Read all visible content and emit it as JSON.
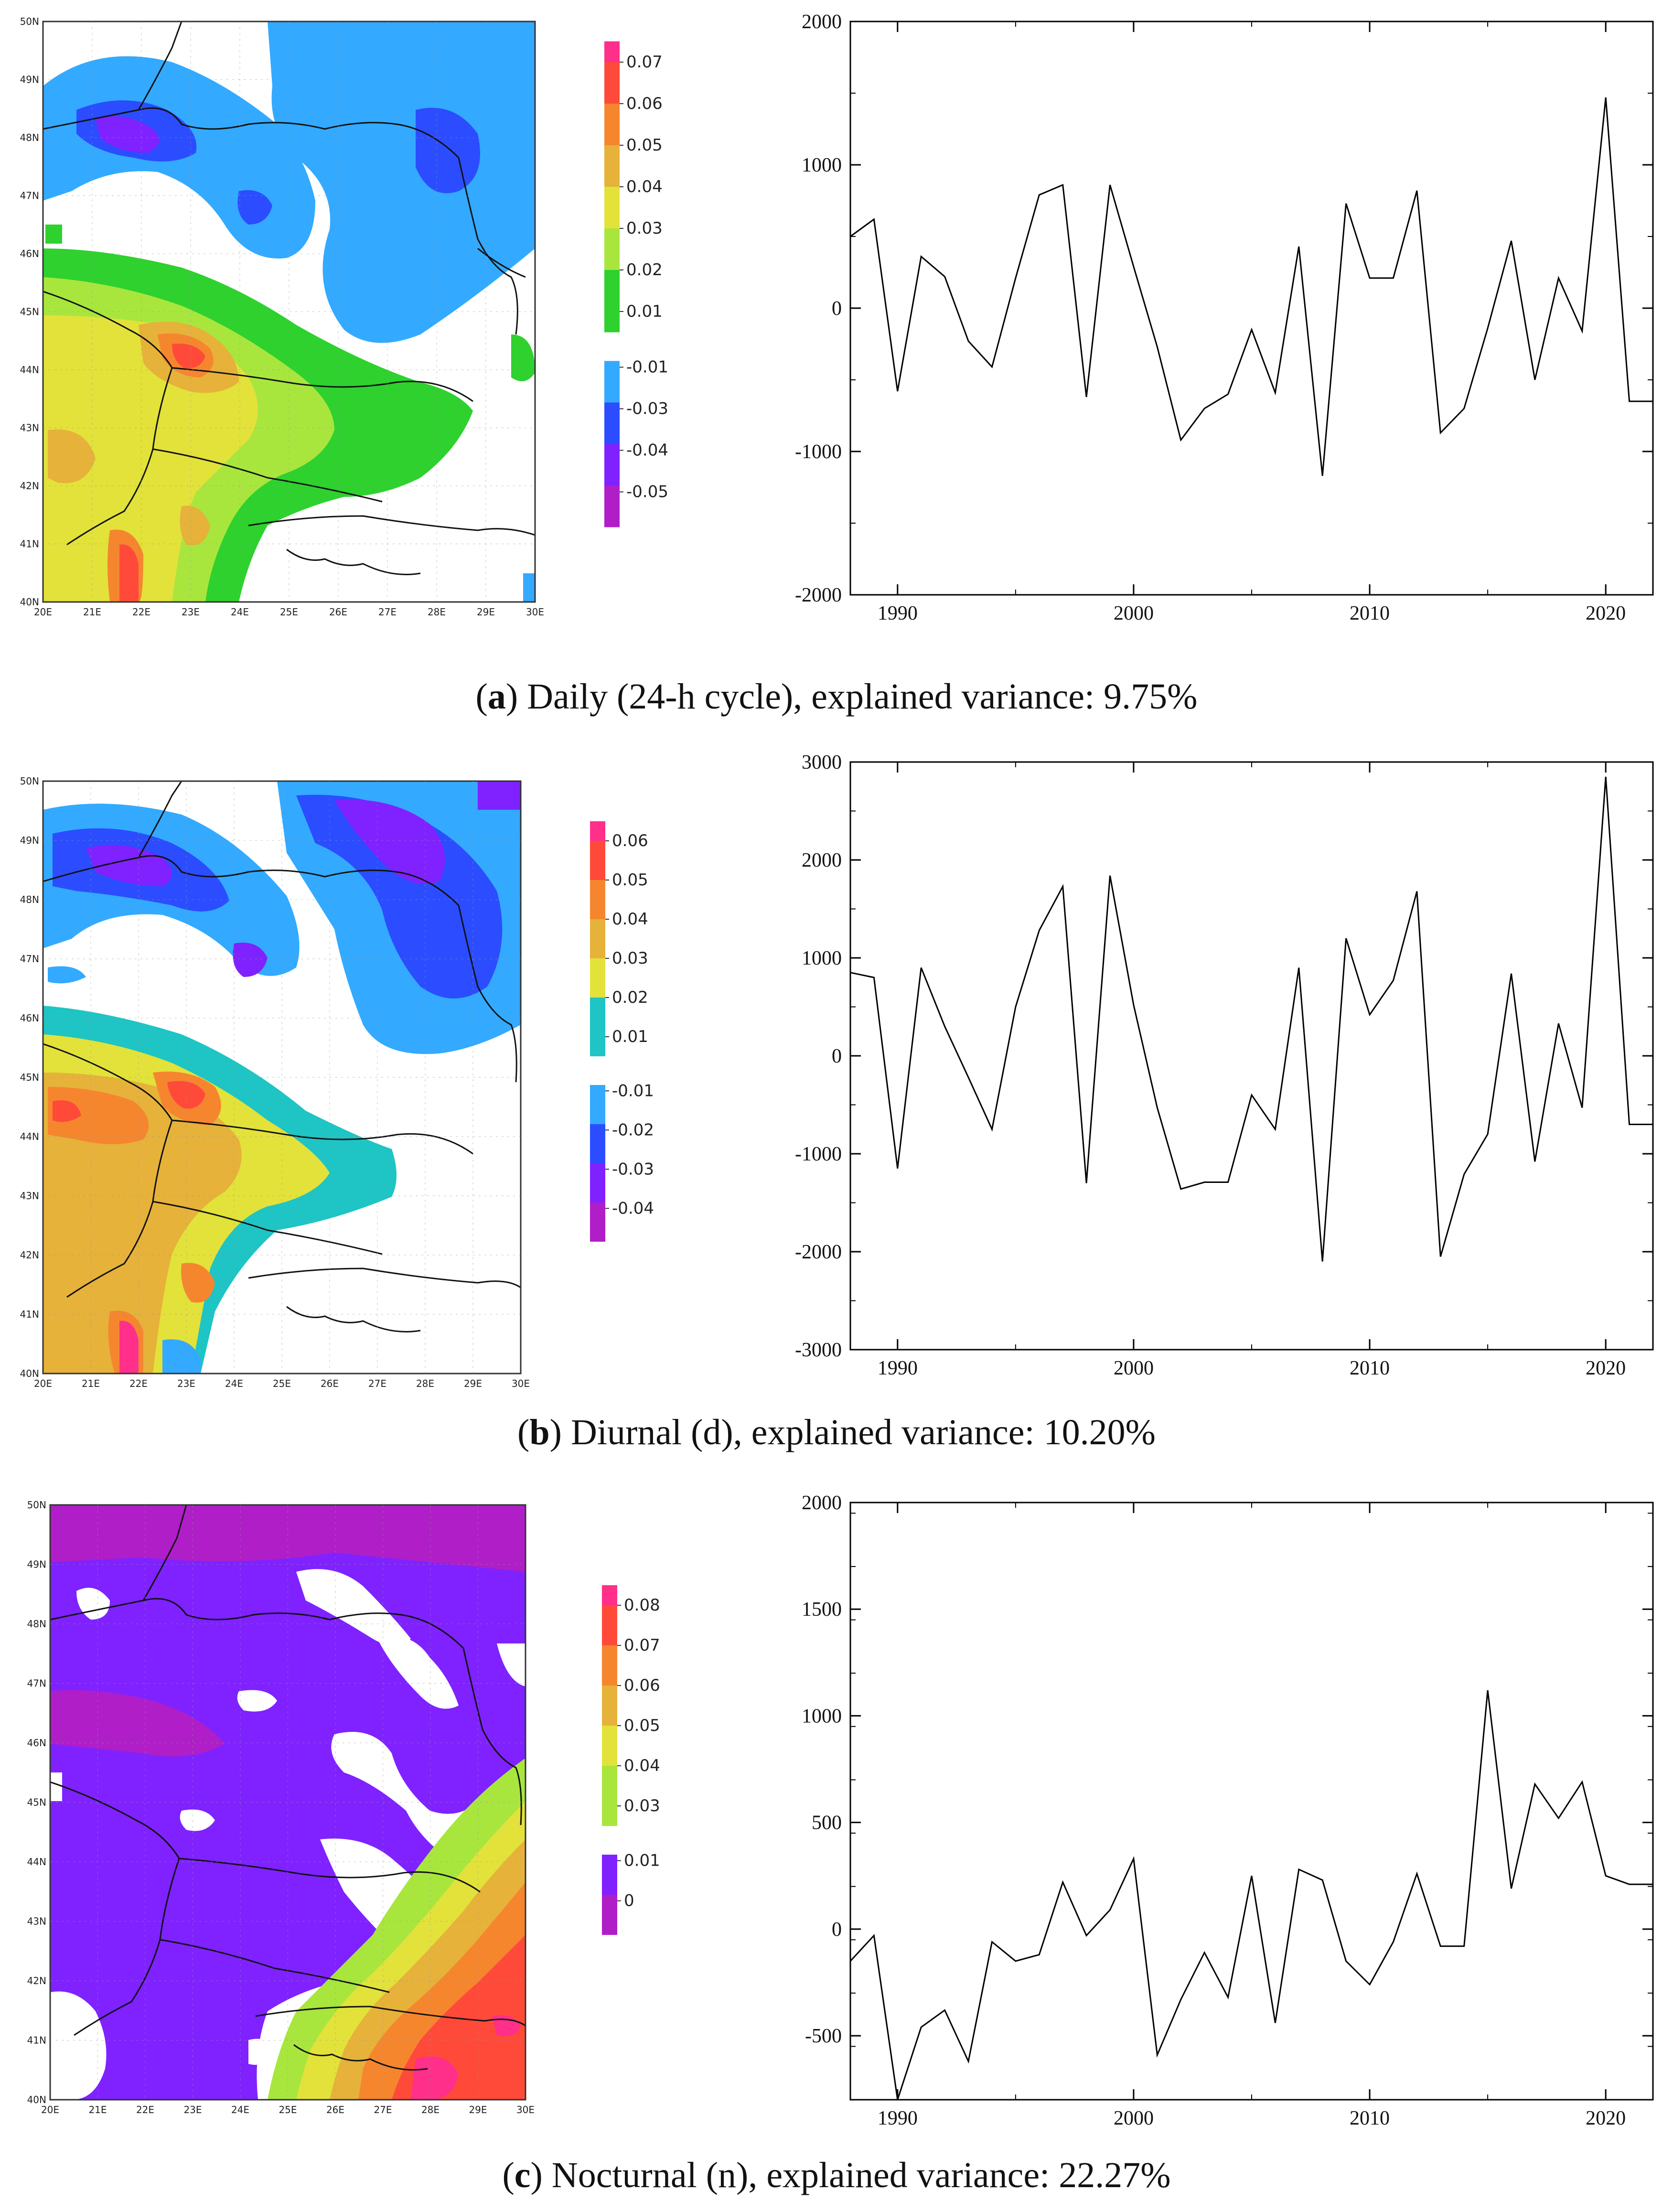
{
  "chart_data": [
    {
      "type": "heatmap",
      "panel": "a",
      "title": "",
      "xlabel": "",
      "ylabel": "",
      "x_ticks": [
        "20E",
        "21E",
        "22E",
        "23E",
        "24E",
        "25E",
        "26E",
        "27E",
        "28E",
        "29E",
        "30E"
      ],
      "y_ticks": [
        "40N",
        "41N",
        "42N",
        "43N",
        "44N",
        "45N",
        "46N",
        "47N",
        "48N",
        "49N",
        "50N"
      ],
      "xlim": [
        20,
        30
      ],
      "ylim": [
        40,
        50
      ],
      "legend_positive": [
        "0.07",
        "0.06",
        "0.05",
        "0.04",
        "0.03",
        "0.02",
        "0.01"
      ],
      "legend_negative": [
        "-0.01",
        "-0.03",
        "-0.04",
        "-0.05"
      ],
      "colors_positive": [
        "#ff2f8a",
        "#ff4a3a",
        "#f5862e",
        "#e6b23a",
        "#e2e23a",
        "#a8e63e",
        "#2ed12e"
      ],
      "colors_negative": [
        "#33aaff",
        "#2b4dff",
        "#7f22ff",
        "#b01ec8"
      ],
      "caption_letter": "a",
      "caption_text": ") Daily (24-h cycle), explained variance: 9.75%"
    },
    {
      "type": "line",
      "panel": "a",
      "title": "",
      "xlabel": "",
      "ylabel": "",
      "xlim": [
        1988,
        2022
      ],
      "ylim": [
        -2000,
        2000
      ],
      "x_ticks": [
        "1990",
        "2000",
        "2010",
        "2020"
      ],
      "y_ticks": [
        "2000",
        "1000",
        "0",
        "-1000",
        "-2000"
      ],
      "x": [
        1988,
        1989,
        1990,
        1991,
        1992,
        1993,
        1994,
        1995,
        1996,
        1997,
        1998,
        1999,
        2000,
        2001,
        2002,
        2003,
        2004,
        2005,
        2006,
        2007,
        2008,
        2009,
        2010,
        2011,
        2012,
        2013,
        2014,
        2015,
        2016,
        2017,
        2018,
        2019,
        2020,
        2021,
        2022
      ],
      "values": [
        500,
        620,
        -580,
        360,
        220,
        -230,
        -410,
        210,
        790,
        860,
        -620,
        860,
        290,
        -270,
        -920,
        -700,
        -600,
        -150,
        -590,
        430,
        -1170,
        730,
        210,
        210,
        820,
        -870,
        -700,
        -140,
        470,
        -500,
        210,
        -160,
        1470,
        -650,
        -650
      ]
    },
    {
      "type": "heatmap",
      "panel": "b",
      "title": "",
      "xlabel": "",
      "ylabel": "",
      "x_ticks": [
        "20E",
        "21E",
        "22E",
        "23E",
        "24E",
        "25E",
        "26E",
        "27E",
        "28E",
        "29E",
        "30E"
      ],
      "y_ticks": [
        "40N",
        "41N",
        "42N",
        "43N",
        "44N",
        "45N",
        "46N",
        "47N",
        "48N",
        "49N",
        "50N"
      ],
      "xlim": [
        20,
        30
      ],
      "ylim": [
        40,
        50
      ],
      "legend_positive": [
        "0.06",
        "0.05",
        "0.04",
        "0.03",
        "0.02",
        "0.01"
      ],
      "legend_negative": [
        "-0.01",
        "-0.02",
        "-0.03",
        "-0.04"
      ],
      "colors_positive": [
        "#ff2f8a",
        "#ff4a3a",
        "#f5862e",
        "#e6b23a",
        "#e2e23a",
        "#1fc4c4"
      ],
      "colors_negative": [
        "#33aaff",
        "#2b4dff",
        "#7f22ff",
        "#b01ec8"
      ],
      "caption_letter": "b",
      "caption_text": ") Diurnal (d), explained variance: 10.20%"
    },
    {
      "type": "line",
      "panel": "b",
      "title": "",
      "xlabel": "",
      "ylabel": "",
      "xlim": [
        1988,
        2022
      ],
      "ylim": [
        -3000,
        3000
      ],
      "x_ticks": [
        "1990",
        "2000",
        "2010",
        "2020"
      ],
      "y_ticks": [
        "3000",
        "2000",
        "1000",
        "0",
        "-1000",
        "-2000",
        "-3000"
      ],
      "x": [
        1988,
        1989,
        1990,
        1991,
        1992,
        1993,
        1994,
        1995,
        1996,
        1997,
        1998,
        1999,
        2000,
        2001,
        2002,
        2003,
        2004,
        2005,
        2006,
        2007,
        2008,
        2009,
        2010,
        2011,
        2012,
        2013,
        2014,
        2015,
        2016,
        2017,
        2018,
        2019,
        2020,
        2021,
        2022
      ],
      "values": [
        850,
        800,
        -1150,
        900,
        300,
        -220,
        -750,
        500,
        1280,
        1730,
        -1300,
        1840,
        520,
        -530,
        -1360,
        -1290,
        -1290,
        -400,
        -750,
        900,
        -2100,
        1200,
        420,
        770,
        1680,
        -2050,
        -1210,
        -800,
        840,
        -1080,
        330,
        -530,
        2850,
        -700,
        -700
      ]
    },
    {
      "type": "heatmap",
      "panel": "c",
      "title": "",
      "xlabel": "",
      "ylabel": "",
      "x_ticks": [
        "20E",
        "21E",
        "22E",
        "23E",
        "24E",
        "25E",
        "26E",
        "27E",
        "28E",
        "29E",
        "30E"
      ],
      "y_ticks": [
        "40N",
        "41N",
        "42N",
        "43N",
        "44N",
        "45N",
        "46N",
        "47N",
        "48N",
        "49N",
        "50N"
      ],
      "xlim": [
        20,
        30
      ],
      "ylim": [
        40,
        50
      ],
      "legend_positive": [
        "0.08",
        "0.07",
        "0.06",
        "0.05",
        "0.04",
        "0.03"
      ],
      "legend_negative": [
        "0.01",
        "0"
      ],
      "colors_positive": [
        "#ff2f8a",
        "#ff4a3a",
        "#f5862e",
        "#e6b23a",
        "#e2e23a",
        "#a8e63e"
      ],
      "colors_negative": [
        "#7f22ff",
        "#b01ec8"
      ],
      "caption_letter": "c",
      "caption_text": ") Nocturnal (n), explained variance: 22.27%"
    },
    {
      "type": "line",
      "panel": "c",
      "title": "",
      "xlabel": "",
      "ylabel": "",
      "xlim": [
        1988,
        2022
      ],
      "ylim": [
        -800,
        2000
      ],
      "x_ticks": [
        "1990",
        "2000",
        "2010",
        "2020"
      ],
      "y_ticks": [
        "2000",
        "1500",
        "1000",
        "500",
        "0",
        "-500"
      ],
      "x": [
        1988,
        1989,
        1990,
        1991,
        1992,
        1993,
        1994,
        1995,
        1996,
        1997,
        1998,
        1999,
        2000,
        2001,
        2002,
        2003,
        2004,
        2005,
        2006,
        2007,
        2008,
        2009,
        2010,
        2011,
        2012,
        2013,
        2014,
        2015,
        2016,
        2017,
        2018,
        2019,
        2020,
        2021,
        2022
      ],
      "values": [
        -150,
        -30,
        -800,
        -460,
        -380,
        -620,
        -60,
        -150,
        -120,
        220,
        -30,
        90,
        330,
        -590,
        -330,
        -110,
        -320,
        250,
        -440,
        280,
        230,
        -150,
        -260,
        -60,
        260,
        -80,
        -80,
        1120,
        190,
        680,
        520,
        690,
        250,
        210,
        210
      ]
    }
  ]
}
